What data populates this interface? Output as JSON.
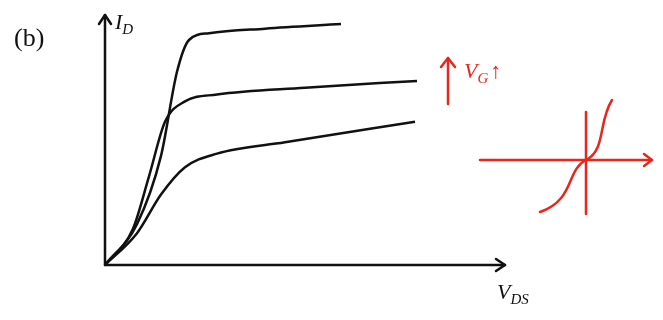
{
  "chart_data": {
    "type": "line",
    "title": "(b)",
    "x_label": "VDS",
    "y_label": "ID",
    "xlim": [
      0,
      10
    ],
    "ylim": [
      0,
      11
    ],
    "tick_labels": false,
    "grid": false,
    "color": "#111111",
    "annotations": [
      {
        "text": "VG↑",
        "color": "#e8261c"
      }
    ],
    "series": [
      {
        "x": [
          0,
          0.8,
          1.4,
          1.8,
          2.1,
          2.6,
          4,
          5.9
        ],
        "values": [
          0,
          1.8,
          4.8,
          8.5,
          9.9,
          10.2,
          10.4,
          10.6
        ]
      },
      {
        "x": [
          0,
          0.7,
          1.1,
          1.5,
          2.0,
          2.8,
          5,
          7.8
        ],
        "values": [
          0,
          1.6,
          3.9,
          6.3,
          7.2,
          7.5,
          7.8,
          8.1
        ]
      },
      {
        "x": [
          0,
          0.8,
          1.4,
          2.0,
          2.8,
          4.5,
          7.75
        ],
        "values": [
          0,
          1.4,
          3.1,
          4.3,
          4.9,
          5.4,
          6.3
        ]
      }
    ]
  }
}
